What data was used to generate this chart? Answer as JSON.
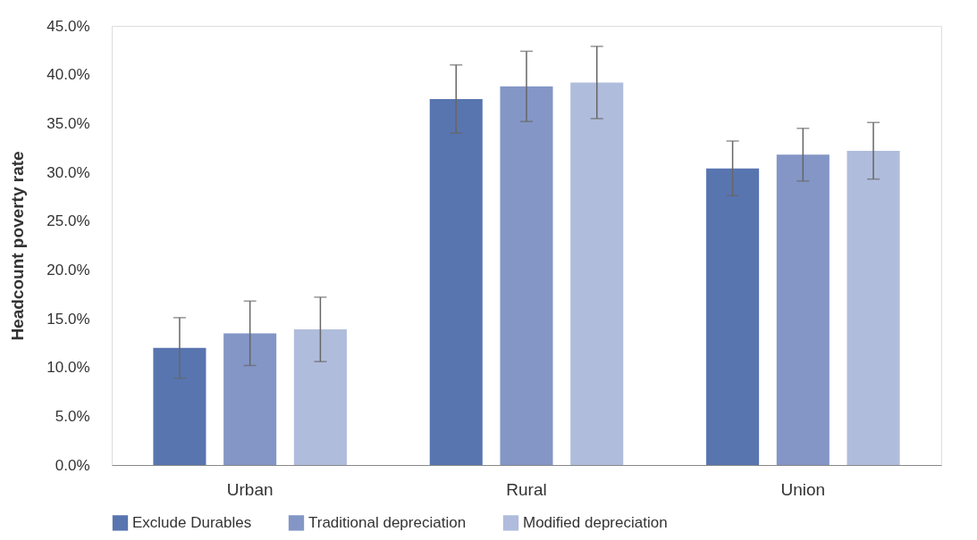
{
  "chart_data": {
    "type": "bar",
    "ylabel": "Headcount poverty rate",
    "categories": [
      "Urban",
      "Rural",
      "Union"
    ],
    "series": [
      {
        "name": "Exclude Durables",
        "color": "#5875b0",
        "values": [
          12.0,
          37.5,
          30.4
        ],
        "errors": [
          3.1,
          3.5,
          2.8
        ]
      },
      {
        "name": "Traditional depreciation",
        "color": "#8396c6",
        "values": [
          13.5,
          38.8,
          31.8
        ],
        "errors": [
          3.3,
          3.6,
          2.7
        ]
      },
      {
        "name": "Modified depreciation",
        "color": "#b0bcdc",
        "values": [
          13.9,
          39.2,
          32.2
        ],
        "errors": [
          3.3,
          3.7,
          2.9
        ]
      }
    ],
    "ylim": [
      0,
      45
    ],
    "yticks": [
      {
        "value": 0,
        "label": "0.0%"
      },
      {
        "value": 5,
        "label": "5.0%"
      },
      {
        "value": 10,
        "label": "10.0%"
      },
      {
        "value": 15,
        "label": "15.0%"
      },
      {
        "value": 20,
        "label": "20.0%"
      },
      {
        "value": 25,
        "label": "25.0%"
      },
      {
        "value": 30,
        "label": "30.0%"
      },
      {
        "value": 35,
        "label": "35.0%"
      },
      {
        "value": 40,
        "label": "40.0%"
      },
      {
        "value": 45,
        "label": "45.0%"
      }
    ],
    "grid": false,
    "legend": "bottom"
  }
}
